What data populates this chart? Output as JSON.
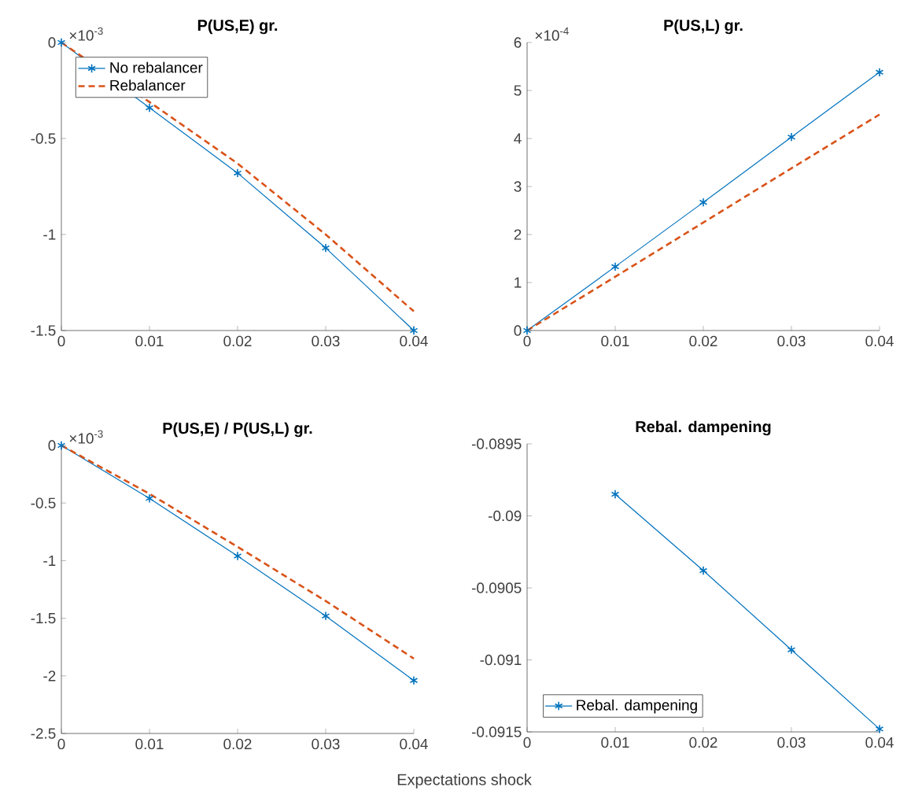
{
  "chart_data": [
    {
      "type": "line",
      "title": "P(US,E) gr.",
      "x": [
        0,
        0.01,
        0.02,
        0.03,
        0.04
      ],
      "series": [
        {
          "name": "No rebalancer",
          "color": "#0072bd",
          "marker": "cross",
          "line_style": "solid",
          "values": [
            0,
            -0.34,
            -0.68,
            -1.07,
            -1.5
          ]
        },
        {
          "name": "Rebalancer",
          "color": "#d95319",
          "marker": "none",
          "line_style": "dashed",
          "values": [
            0,
            -0.31,
            -0.63,
            -1.0,
            -1.4
          ]
        }
      ],
      "xlim": [
        0,
        0.04
      ],
      "ylim": [
        -1.5,
        0
      ],
      "xticks": [
        0,
        0.01,
        0.02,
        0.03,
        0.04
      ],
      "yticks": [
        -1.5,
        -1,
        -0.5,
        0
      ],
      "annotations": [
        "×10$^{-3}$"
      ],
      "legend": "top left"
    },
    {
      "type": "line",
      "title": "P(US,L) gr.",
      "x": [
        0,
        0.01,
        0.02,
        0.03,
        0.04
      ],
      "series": [
        {
          "color": "#0072bd",
          "marker": "cross",
          "line_style": "solid",
          "values": [
            0,
            1.33,
            2.67,
            4.03,
            5.38
          ]
        },
        {
          "color": "#d95319",
          "marker": "none",
          "line_style": "dashed",
          "values": [
            0,
            1.12,
            2.25,
            3.38,
            4.5
          ]
        }
      ],
      "xlim": [
        0,
        0.04
      ],
      "ylim": [
        0,
        6
      ],
      "xticks": [
        0,
        0.01,
        0.02,
        0.03,
        0.04
      ],
      "yticks": [
        0,
        1,
        2,
        3,
        4,
        5,
        6
      ],
      "annotations": [
        "×10$^{-4}$"
      ]
    },
    {
      "type": "line",
      "title": "P(US,E) / P(US,L) gr.",
      "xlabel": "Expectations shock",
      "x": [
        0,
        0.01,
        0.02,
        0.03,
        0.04
      ],
      "series": [
        {
          "color": "#0072bd",
          "marker": "cross",
          "line_style": "solid",
          "values": [
            0,
            -0.46,
            -0.96,
            -1.48,
            -2.04
          ]
        },
        {
          "color": "#d95319",
          "marker": "none",
          "line_style": "dashed",
          "values": [
            0,
            -0.42,
            -0.88,
            -1.35,
            -1.85
          ]
        }
      ],
      "xlim": [
        0,
        0.04
      ],
      "ylim": [
        -2.5,
        0
      ],
      "xticks": [
        0,
        0.01,
        0.02,
        0.03,
        0.04
      ],
      "yticks": [
        -2.5,
        -2,
        -1.5,
        -1,
        -0.5,
        0
      ],
      "annotations": [
        "×10$^{-3}$"
      ]
    },
    {
      "type": "line",
      "title": "Rebal. dampening",
      "x": [
        0.01,
        0.02,
        0.03,
        0.04
      ],
      "series": [
        {
          "name": "Rebal. dampening",
          "color": "#0072bd",
          "marker": "cross",
          "line_style": "solid",
          "values": [
            -0.08985,
            -0.09038,
            -0.09093,
            -0.09148
          ]
        }
      ],
      "xlim": [
        0,
        0.04
      ],
      "ylim": [
        -0.0915,
        -0.0895
      ],
      "xticks": [
        0,
        0.01,
        0.02,
        0.03,
        0.04
      ],
      "yticks": [
        -0.0915,
        -0.091,
        -0.0905,
        -0.09,
        -0.0895
      ],
      "legend": "bottom left"
    }
  ]
}
